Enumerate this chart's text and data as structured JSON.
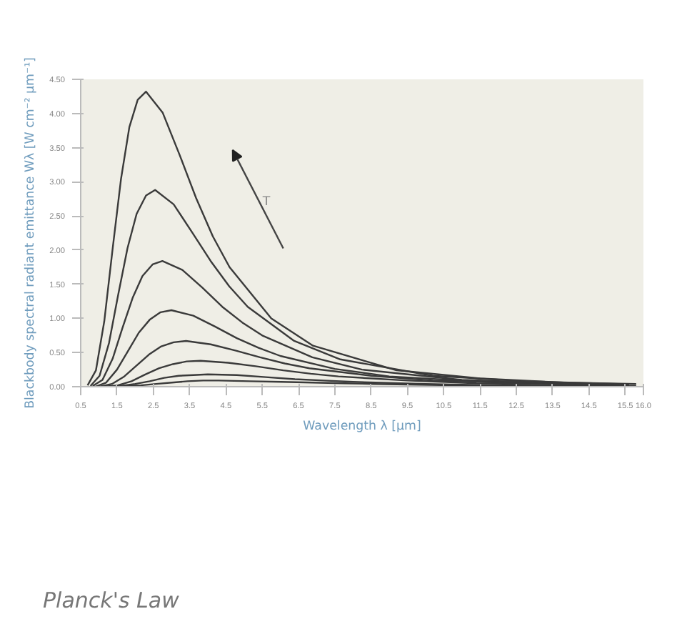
{
  "chart_data": {
    "type": "line",
    "xlabel": "Wavelength λ [µm]",
    "ylabel": "Blackbody spectral radiant emittance Wλ [W cm⁻² µm⁻¹]",
    "annotations": [
      "T",
      "Planck's Law"
    ],
    "xlim": [
      0.5,
      16.0
    ],
    "ylim": [
      0,
      4.5
    ],
    "xticks": [
      0.5,
      1.5,
      2.5,
      3.5,
      4.5,
      5.5,
      6.5,
      7.5,
      8.5,
      9.5,
      10.5,
      11.5,
      12.5,
      13.5,
      14.5,
      15.5,
      {
        "value": 16,
        "label": "16.0"
      }
    ],
    "yticks": [
      {
        "value": 0,
        "label": "0.00"
      },
      {
        "value": 0.5,
        "label": "0.50"
      },
      {
        "value": 1,
        "label": "1.00"
      },
      {
        "value": 1.5,
        "label": "1.50"
      },
      {
        "value": 2,
        "label": "2.00"
      },
      {
        "value": 2.5,
        "label": "2.50"
      },
      {
        "value": 3,
        "label": "3.00"
      },
      {
        "value": 3.5,
        "label": "3.50"
      },
      {
        "value": 4,
        "label": "4.00"
      },
      {
        "value": 4.5,
        "label": "4.50"
      }
    ],
    "grid": false,
    "marker": "none",
    "line_style": "solid",
    "series": [
      {
        "color": "#3a3a3a",
        "x": [
          0.69,
          0.92,
          1.15,
          1.38,
          1.61,
          1.84,
          2.07,
          2.3,
          2.76,
          3.22,
          3.68,
          4.14,
          4.6,
          5.75,
          6.9,
          9.2,
          11.5,
          13.8,
          15.8
        ],
        "values": [
          0.02,
          0.24,
          0.96,
          2.02,
          3.04,
          3.8,
          4.2,
          4.32,
          4.01,
          3.4,
          2.76,
          2.2,
          1.75,
          1.0,
          0.6,
          0.24,
          0.12,
          0.06,
          0.04
        ]
      },
      {
        "color": "#3a3a3a",
        "x": [
          0.77,
          1.02,
          1.28,
          1.53,
          1.79,
          2.04,
          2.3,
          2.55,
          3.06,
          3.57,
          4.08,
          4.59,
          5.1,
          6.38,
          7.65,
          10.2,
          12.75,
          15.3
        ],
        "values": [
          0.01,
          0.16,
          0.64,
          1.34,
          2.03,
          2.53,
          2.8,
          2.88,
          2.67,
          2.26,
          1.84,
          1.47,
          1.17,
          0.67,
          0.4,
          0.16,
          0.08,
          0.04
        ]
      },
      {
        "color": "#3a3a3a",
        "x": [
          0.83,
          1.1,
          1.38,
          1.65,
          1.93,
          2.2,
          2.48,
          2.75,
          3.3,
          3.85,
          4.4,
          4.95,
          5.5,
          6.88,
          8.25,
          11.0,
          13.75,
          15.6
        ],
        "values": [
          0.01,
          0.1,
          0.41,
          0.86,
          1.3,
          1.62,
          1.79,
          1.84,
          1.71,
          1.45,
          1.17,
          0.94,
          0.75,
          0.43,
          0.25,
          0.1,
          0.05,
          0.03
        ]
      },
      {
        "color": "#3a3a3a",
        "x": [
          0.9,
          1.2,
          1.5,
          1.8,
          2.1,
          2.4,
          2.7,
          3.0,
          3.6,
          4.2,
          4.8,
          5.4,
          6.0,
          7.5,
          9.0,
          12.0,
          15.0
        ],
        "values": [
          0.0,
          0.06,
          0.25,
          0.52,
          0.79,
          0.98,
          1.09,
          1.12,
          1.04,
          0.88,
          0.71,
          0.57,
          0.45,
          0.26,
          0.15,
          0.06,
          0.03
        ]
      },
      {
        "color": "#3a3a3a",
        "x": [
          1.02,
          1.36,
          1.7,
          2.04,
          2.38,
          2.72,
          3.06,
          3.4,
          4.08,
          4.76,
          5.44,
          6.12,
          6.8,
          8.5,
          10.2,
          13.6,
          15.6
        ],
        "values": [
          0.0,
          0.04,
          0.15,
          0.31,
          0.47,
          0.59,
          0.65,
          0.67,
          0.62,
          0.53,
          0.43,
          0.34,
          0.27,
          0.16,
          0.09,
          0.04,
          0.02
        ]
      },
      {
        "color": "#3a3a3a",
        "x": [
          1.14,
          1.52,
          1.9,
          2.28,
          2.66,
          3.04,
          3.42,
          3.8,
          4.56,
          5.32,
          6.08,
          6.84,
          7.6,
          9.5,
          11.4,
          15.2
        ],
        "values": [
          0.0,
          0.02,
          0.08,
          0.18,
          0.27,
          0.33,
          0.37,
          0.38,
          0.35,
          0.3,
          0.24,
          0.19,
          0.15,
          0.09,
          0.05,
          0.02
        ]
      },
      {
        "color": "#3a3a3a",
        "x": [
          1.2,
          1.6,
          2.0,
          2.4,
          2.8,
          3.2,
          3.6,
          4.0,
          4.8,
          5.6,
          6.4,
          7.2,
          8.0,
          10.0,
          12.0,
          15.8
        ],
        "values": [
          0.0,
          0.01,
          0.04,
          0.08,
          0.13,
          0.16,
          0.17,
          0.18,
          0.17,
          0.14,
          0.11,
          0.09,
          0.07,
          0.04,
          0.02,
          0.01
        ]
      },
      {
        "color": "#3a3a3a",
        "x": [
          1.29,
          1.72,
          2.15,
          2.58,
          3.01,
          3.44,
          3.87,
          4.3,
          5.16,
          6.02,
          6.88,
          7.74,
          8.6,
          10.75,
          12.9
        ],
        "values": [
          0.0,
          0.01,
          0.02,
          0.04,
          0.06,
          0.08,
          0.09,
          0.09,
          0.08,
          0.07,
          0.06,
          0.05,
          0.04,
          0.02,
          0.01
        ]
      }
    ]
  }
}
